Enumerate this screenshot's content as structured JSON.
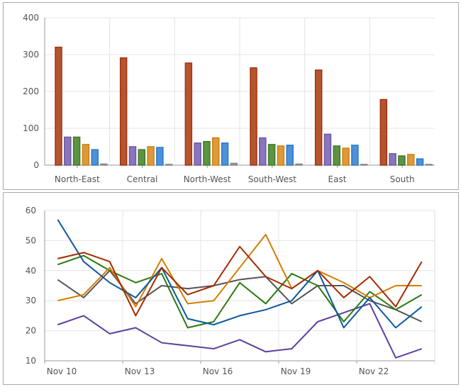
{
  "chart_data": [
    {
      "type": "bar",
      "categories": [
        "North-East",
        "Central",
        "North-West",
        "South-West",
        "East",
        "South"
      ],
      "ylim": [
        0,
        400
      ],
      "yticks": [
        0,
        100,
        200,
        300,
        400
      ],
      "grid": true,
      "series": [
        {
          "color": "#b5552f",
          "stroke": "#a13410",
          "values": [
            320,
            291,
            277,
            264,
            258,
            178
          ]
        },
        {
          "color": "#8a76bb",
          "stroke": "#6e58a6",
          "values": [
            76,
            50,
            60,
            74,
            84,
            31
          ]
        },
        {
          "color": "#5d9444",
          "stroke": "#3c7a25",
          "values": [
            76,
            42,
            64,
            56,
            52,
            25
          ]
        },
        {
          "color": "#dd9a3a",
          "stroke": "#cf7f10",
          "values": [
            56,
            50,
            74,
            52,
            46,
            29
          ]
        },
        {
          "color": "#4d92d6",
          "stroke": "#2a79c8",
          "values": [
            42,
            48,
            60,
            54,
            54,
            17
          ]
        },
        {
          "color": "#9a9a9a",
          "stroke": "#888888",
          "values": [
            3,
            2,
            5,
            3,
            2,
            2
          ]
        }
      ]
    },
    {
      "type": "line",
      "x": [
        "Nov 10",
        "Nov 11",
        "Nov 12",
        "Nov 13",
        "Nov 14",
        "Nov 15",
        "Nov 16",
        "Nov 17",
        "Nov 18",
        "Nov 19",
        "Nov 20",
        "Nov 21",
        "Nov 22",
        "Nov 23",
        "Nov 24"
      ],
      "xticks": [
        "Nov 10",
        "Nov 13",
        "Nov 16",
        "Nov 19",
        "Nov 22"
      ],
      "ylim": [
        10,
        60
      ],
      "yticks": [
        10,
        20,
        30,
        40,
        50,
        60
      ],
      "grid": true,
      "series": [
        {
          "color": "#555555",
          "values": [
            37,
            31,
            40,
            29,
            35,
            34,
            35,
            37,
            38,
            29,
            35,
            35,
            30,
            27,
            23
          ]
        },
        {
          "color": "#5c40a2",
          "values": [
            22,
            25,
            19,
            21,
            16,
            15,
            14,
            17,
            13,
            14,
            23,
            26,
            29,
            11,
            14
          ]
        },
        {
          "color": "#2a7a10",
          "values": [
            42,
            45,
            40,
            36,
            39,
            21,
            23,
            36,
            29,
            39,
            35,
            23,
            33,
            27,
            32
          ]
        },
        {
          "color": "#d57c00",
          "values": [
            30,
            32,
            41,
            28,
            44,
            29,
            30,
            41,
            52,
            34,
            40,
            36,
            31,
            35,
            35
          ]
        },
        {
          "color": "#0b5aa0",
          "values": [
            57,
            43,
            36,
            31,
            41,
            24,
            22,
            25,
            27,
            30,
            40,
            21,
            31,
            21,
            28
          ]
        },
        {
          "color": "#a52a00",
          "values": [
            44,
            46,
            43,
            25,
            41,
            32,
            35,
            48,
            38,
            34,
            40,
            31,
            38,
            28,
            43
          ]
        }
      ]
    }
  ]
}
